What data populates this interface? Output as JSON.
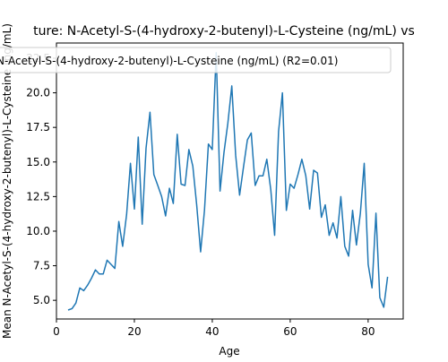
{
  "chart_data": {
    "type": "line",
    "title": "ture: N-Acetyl-S-(4-hydroxy-2-butenyl)-L-Cysteine (ng/mL) vs",
    "xlabel": "Age",
    "ylabel": "Mean N-Acetyl-S-(4-hydroxy-2-butenyl)-L-Cysteine (ng/mL)",
    "xlim": [
      0,
      89
    ],
    "ylim": [
      3.65,
      23.6
    ],
    "x_ticks": [
      0,
      20,
      40,
      60,
      80
    ],
    "y_ticks": [
      5.0,
      7.5,
      10.0,
      12.5,
      15.0,
      17.5,
      20.0,
      22.5
    ],
    "x_tick_labels": [
      "0",
      "20",
      "40",
      "60",
      "80"
    ],
    "y_tick_labels": [
      "5.0",
      "7.5",
      "10.0",
      "12.5",
      "15.0",
      "17.5",
      "20.0",
      "22.5"
    ],
    "grid": false,
    "legend": "top",
    "colors": {
      "series": "#1f77b4",
      "axes": "#000000",
      "legend_border": "#cccccc"
    },
    "series": [
      {
        "name": "N-Acetyl-S-(4-hydroxy-2-butenyl)-L-Cysteine (ng/mL) (R2=0.01)",
        "x": [
          3,
          4,
          5,
          6,
          7,
          8,
          9,
          10,
          11,
          12,
          13,
          14,
          15,
          16,
          17,
          18,
          19,
          20,
          21,
          22,
          23,
          24,
          25,
          26,
          27,
          28,
          29,
          30,
          31,
          32,
          33,
          34,
          35,
          36,
          37,
          38,
          39,
          40,
          41,
          42,
          43,
          44,
          45,
          46,
          47,
          48,
          49,
          50,
          51,
          52,
          53,
          54,
          55,
          56,
          57,
          58,
          59,
          60,
          61,
          62,
          63,
          64,
          65,
          66,
          67,
          68,
          69,
          70,
          71,
          72,
          73,
          74,
          75,
          76,
          77,
          78,
          79,
          80,
          81,
          82,
          83,
          84,
          85
        ],
        "y": [
          4.3,
          4.4,
          4.8,
          5.9,
          5.7,
          6.1,
          6.6,
          7.2,
          6.9,
          6.9,
          7.9,
          7.6,
          7.3,
          10.7,
          8.9,
          11.2,
          14.9,
          11.6,
          16.8,
          10.5,
          16.0,
          18.6,
          14.1,
          13.3,
          12.5,
          11.1,
          13.1,
          12.0,
          17.0,
          13.4,
          13.3,
          15.9,
          14.7,
          11.9,
          8.5,
          11.5,
          16.3,
          15.9,
          22.9,
          12.9,
          15.7,
          17.8,
          20.5,
          15.5,
          12.6,
          14.6,
          16.6,
          17.1,
          13.3,
          14.0,
          14.0,
          15.2,
          13.0,
          9.7,
          17.2,
          20.0,
          11.5,
          13.4,
          13.1,
          14.1,
          15.2,
          14.0,
          11.6,
          14.4,
          14.2,
          11.0,
          11.9,
          9.7,
          10.6,
          9.5,
          12.5,
          8.9,
          8.2,
          11.5,
          9.0,
          11.3,
          14.9,
          7.6,
          5.9,
          11.3,
          5.2,
          4.5,
          6.7
        ]
      }
    ]
  }
}
